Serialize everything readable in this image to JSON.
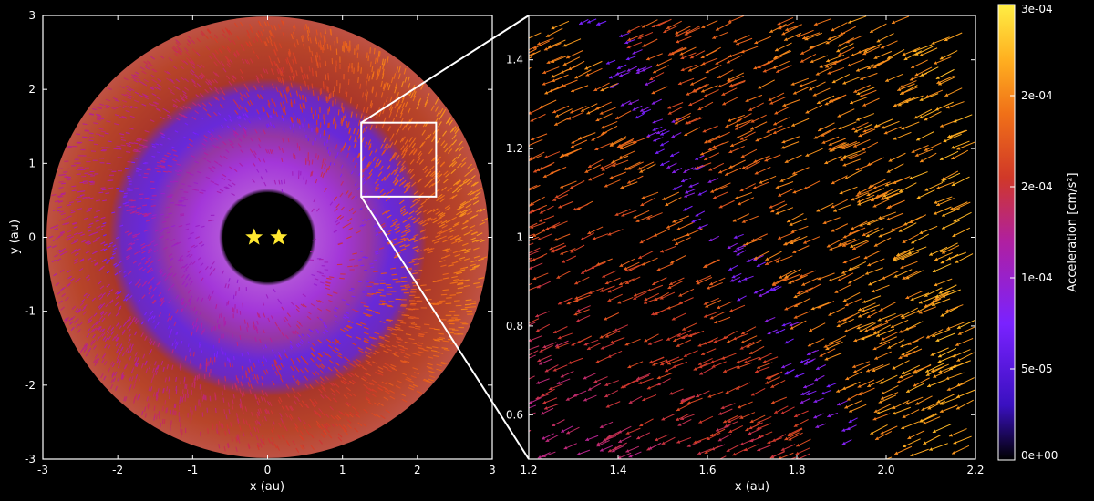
{
  "chart_data": [
    {
      "type": "scatter",
      "panel": "left",
      "xlabel": "x (au)",
      "ylabel": "y (au)",
      "xlim": [
        -3,
        3
      ],
      "ylim": [
        -3,
        3
      ],
      "xticks": [
        "-3",
        "-2",
        "-1",
        "0",
        "1",
        "2",
        "3"
      ],
      "yticks": [
        "-3",
        "-2",
        "-1",
        "0",
        "1",
        "2",
        "3"
      ],
      "grid": false,
      "stars": [
        [
          -0.18,
          0.0
        ],
        [
          0.15,
          0.0
        ]
      ],
      "inner_hole_radius": 0.6,
      "outer_radius": 2.95,
      "zoom_box": {
        "x": [
          1.25,
          2.25
        ],
        "y": [
          0.55,
          1.55
        ]
      }
    },
    {
      "type": "scatter",
      "panel": "right",
      "xlabel": "x (au)",
      "ylabel": "",
      "xlim": [
        1.2,
        2.2
      ],
      "ylim": [
        0.5,
        1.5
      ],
      "xticks": [
        "1.2",
        "1.4",
        "1.6",
        "1.8",
        "2.0",
        "2.2"
      ],
      "yticks": [
        "0.6",
        "0.8",
        "1",
        "1.2",
        "1.4"
      ],
      "grid": false
    }
  ],
  "colorbar": {
    "label": "Acceleration [cm/s²]",
    "ticks": [
      "3e-04",
      "2e-04",
      "2e-04",
      "1e-04",
      "5e-05",
      "0e+00"
    ],
    "colors": [
      "#ffee44",
      "#ffb020",
      "#f07018",
      "#d03828",
      "#b020a0",
      "#7a22ff",
      "#3a10c0",
      "#000000"
    ]
  }
}
